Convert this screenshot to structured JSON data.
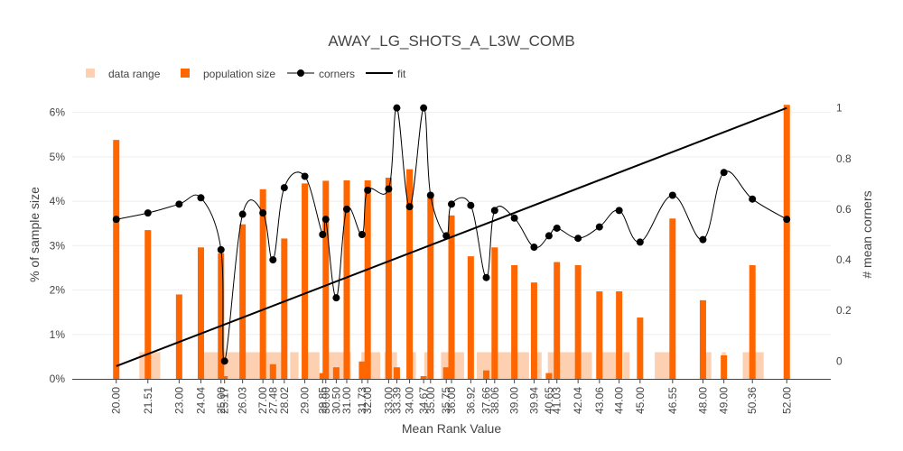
{
  "chart_data": {
    "type": "bar",
    "title": "AWAY_LG_SHOTS_A_L3W_COMB",
    "xlabel": "Mean Rank Value",
    "ylabel": "% of sample size",
    "y2label": "# mean corners",
    "xlim": [
      17.9,
      54.1
    ],
    "ylim": [
      0,
      6.5
    ],
    "y2lim": [
      -0.07,
      1.07
    ],
    "yticks": [
      0,
      1,
      2,
      3,
      4,
      5,
      6
    ],
    "yticklabels": [
      "0%",
      "1%",
      "2%",
      "3%",
      "4%",
      "5%",
      "6%"
    ],
    "y2ticks": [
      0,
      0.2,
      0.4,
      0.6,
      0.8,
      1
    ],
    "y2ticklabels": [
      "0",
      "0.2",
      "0.4",
      "0.6",
      "0.8",
      "1"
    ],
    "legend": {
      "placement": "top-left",
      "items": [
        {
          "label": "data range",
          "kind": "range",
          "color": "#fdd0b1"
        },
        {
          "label": "population size",
          "kind": "bar",
          "color": "#ff6600"
        },
        {
          "label": "corners",
          "kind": "line-marker",
          "color": "#000000"
        },
        {
          "label": "fit",
          "kind": "line",
          "color": "#000000"
        }
      ]
    },
    "colors": {
      "range": "#fdd0b1",
      "bar": "#ff6600",
      "line": "#000000",
      "grid": "#eeeeee"
    },
    "points": [
      {
        "x": 20.0,
        "label": "20.00",
        "pct": 5.38,
        "corners": 0.56
      },
      {
        "x": 21.51,
        "label": "21.51",
        "pct": 3.35,
        "corners": 0.585
      },
      {
        "x": 23.0,
        "label": "23.00",
        "pct": 1.9,
        "corners": 0.62
      },
      {
        "x": 24.04,
        "label": "24.04",
        "pct": 2.96,
        "corners": 0.645
      },
      {
        "x": 25.0,
        "label": "25.00",
        "pct": 2.83,
        "corners": 0.44
      },
      {
        "x": 25.17,
        "label": "25.17",
        "pct": 0.06,
        "corners": 0.0
      },
      {
        "x": 26.03,
        "label": "26.03",
        "pct": 3.48,
        "corners": 0.58
      },
      {
        "x": 27.0,
        "label": "27.00",
        "pct": 4.27,
        "corners": 0.585
      },
      {
        "x": 27.48,
        "label": "27.48",
        "pct": 0.33,
        "corners": 0.4
      },
      {
        "x": 28.02,
        "label": "28.02",
        "pct": 3.16,
        "corners": 0.685
      },
      {
        "x": 29.0,
        "label": "29.00",
        "pct": 4.4,
        "corners": 0.73
      },
      {
        "x": 29.85,
        "label": "29.85",
        "pct": 0.13,
        "corners": 0.5
      },
      {
        "x": 30.0,
        "label": "30.00",
        "pct": 4.46,
        "corners": 0.56
      },
      {
        "x": 30.5,
        "label": "30.50",
        "pct": 0.26,
        "corners": 0.25
      },
      {
        "x": 31.0,
        "label": "31.00",
        "pct": 4.47,
        "corners": 0.6
      },
      {
        "x": 31.73,
        "label": "31.73",
        "pct": 0.39,
        "corners": 0.5
      },
      {
        "x": 32.0,
        "label": "32.00",
        "pct": 4.47,
        "corners": 0.675
      },
      {
        "x": 33.0,
        "label": "33.00",
        "pct": 4.53,
        "corners": 0.68
      },
      {
        "x": 33.39,
        "label": "33.39",
        "pct": 0.26,
        "corners": 1.0
      },
      {
        "x": 34.0,
        "label": "34.00",
        "pct": 4.72,
        "corners": 0.61
      },
      {
        "x": 34.67,
        "label": "34.67",
        "pct": 0.06,
        "corners": 1.0
      },
      {
        "x": 35.0,
        "label": "35.00",
        "pct": 4.08,
        "corners": 0.655
      },
      {
        "x": 35.75,
        "label": "35.75",
        "pct": 0.26,
        "corners": 0.495
      },
      {
        "x": 36.0,
        "label": "36.00",
        "pct": 3.68,
        "corners": 0.62
      },
      {
        "x": 36.92,
        "label": "36.92",
        "pct": 2.76,
        "corners": 0.615
      },
      {
        "x": 37.66,
        "label": "37.66",
        "pct": 0.19,
        "corners": 0.33
      },
      {
        "x": 38.06,
        "label": "38.06",
        "pct": 2.96,
        "corners": 0.595
      },
      {
        "x": 39.0,
        "label": "39.00",
        "pct": 2.56,
        "corners": 0.565
      },
      {
        "x": 39.94,
        "label": "39.94",
        "pct": 2.17,
        "corners": 0.45
      },
      {
        "x": 40.65,
        "label": "40.65",
        "pct": 0.13,
        "corners": 0.495
      },
      {
        "x": 41.03,
        "label": "41.03",
        "pct": 2.63,
        "corners": 0.525
      },
      {
        "x": 42.04,
        "label": "42.04",
        "pct": 2.56,
        "corners": 0.485
      },
      {
        "x": 43.06,
        "label": "43.06",
        "pct": 1.97,
        "corners": 0.53
      },
      {
        "x": 44.0,
        "label": "44.00",
        "pct": 1.97,
        "corners": 0.595
      },
      {
        "x": 45.0,
        "label": "45.00",
        "pct": 1.38,
        "corners": 0.47
      },
      {
        "x": 46.55,
        "label": "46.55",
        "pct": 3.61,
        "corners": 0.655
      },
      {
        "x": 48.0,
        "label": "48.00",
        "pct": 1.77,
        "corners": 0.48
      },
      {
        "x": 49.0,
        "label": "49.00",
        "pct": 0.53,
        "corners": 0.745
      },
      {
        "x": 50.36,
        "label": "50.36",
        "pct": 2.56,
        "corners": 0.64
      },
      {
        "x": 52.0,
        "label": "52.00",
        "pct": 6.17,
        "corners": 0.56
      }
    ],
    "ranges": [
      {
        "x0": 21.1,
        "x1": 22.1
      },
      {
        "x0": 24.0,
        "x1": 28.0
      },
      {
        "x0": 28.3,
        "x1": 28.7
      },
      {
        "x0": 29.0,
        "x1": 29.7
      },
      {
        "x0": 30.1,
        "x1": 30.5
      },
      {
        "x0": 30.5,
        "x1": 31.2
      },
      {
        "x0": 31.7,
        "x1": 32.0
      },
      {
        "x0": 32.1,
        "x1": 32.6
      },
      {
        "x0": 32.8,
        "x1": 33.4
      },
      {
        "x0": 34.0,
        "x1": 34.3
      },
      {
        "x0": 34.7,
        "x1": 34.9
      },
      {
        "x0": 35.5,
        "x1": 36.6
      },
      {
        "x0": 37.2,
        "x1": 38.6
      },
      {
        "x0": 38.3,
        "x1": 39.7
      },
      {
        "x0": 39.9,
        "x1": 40.3
      },
      {
        "x0": 40.6,
        "x1": 42.0
      },
      {
        "x0": 42.2,
        "x1": 42.7
      },
      {
        "x0": 42.9,
        "x1": 44.0
      },
      {
        "x0": 44.2,
        "x1": 44.5
      },
      {
        "x0": 45.7,
        "x1": 46.7
      },
      {
        "x0": 47.9,
        "x1": 48.4
      },
      {
        "x0": 48.9,
        "x1": 49.1
      },
      {
        "x0": 49.9,
        "x1": 50.9
      }
    ],
    "range_height_pct": 0.6,
    "fit": {
      "x0": 20.0,
      "y0": -0.02,
      "x1": 52.0,
      "y1": 1.0
    }
  }
}
